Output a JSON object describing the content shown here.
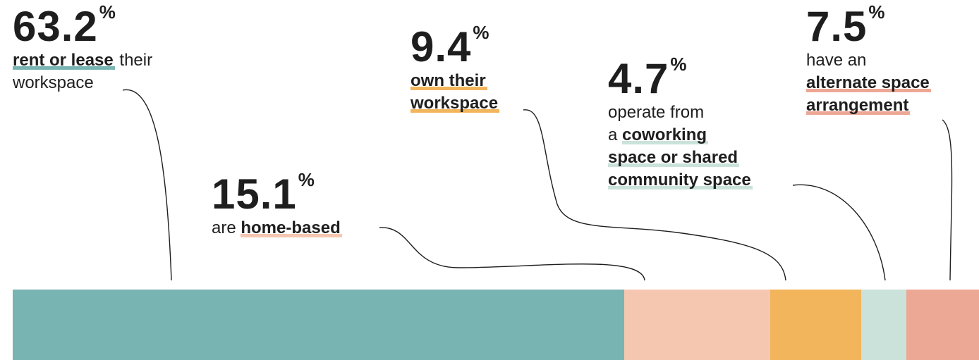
{
  "chart_data": {
    "type": "bar",
    "orientation": "horizontal-stacked",
    "categories": [
      "rent or lease",
      "home-based",
      "own their workspace",
      "coworking space or shared community space",
      "alternate space arrangement"
    ],
    "values": [
      63.2,
      15.1,
      9.4,
      4.7,
      7.5
    ],
    "colors": [
      "#78b4b2",
      "#f6c7b0",
      "#f2b55c",
      "#cbe2da",
      "#eda795"
    ]
  },
  "labels": [
    {
      "pct": "63.2",
      "sign": "%",
      "lines": [
        [
          {
            "t": "rent or lease",
            "hl": true
          },
          {
            "t": " their"
          }
        ],
        [
          {
            "t": "workspace"
          }
        ]
      ]
    },
    {
      "pct": "15.1",
      "sign": "%",
      "lines": [
        [
          {
            "t": "are "
          },
          {
            "t": "home-based",
            "hl": true
          }
        ]
      ]
    },
    {
      "pct": "9.4",
      "sign": "%",
      "lines": [
        [
          {
            "t": "own their",
            "hl": true
          }
        ],
        [
          {
            "t": "workspace",
            "hl": true
          }
        ]
      ]
    },
    {
      "pct": "4.7",
      "sign": "%",
      "lines": [
        [
          {
            "t": "operate from"
          }
        ],
        [
          {
            "t": "a "
          },
          {
            "t": "coworking",
            "hl": true
          }
        ],
        [
          {
            "t": "space or shared",
            "hl": true
          }
        ],
        [
          {
            "t": "community space",
            "hl": true
          }
        ]
      ]
    },
    {
      "pct": "7.5",
      "sign": "%",
      "lines": [
        [
          {
            "t": "have an"
          }
        ],
        [
          {
            "t": "alternate space",
            "hl": true
          }
        ],
        [
          {
            "t": "arrangement",
            "hl": true
          }
        ]
      ]
    }
  ]
}
